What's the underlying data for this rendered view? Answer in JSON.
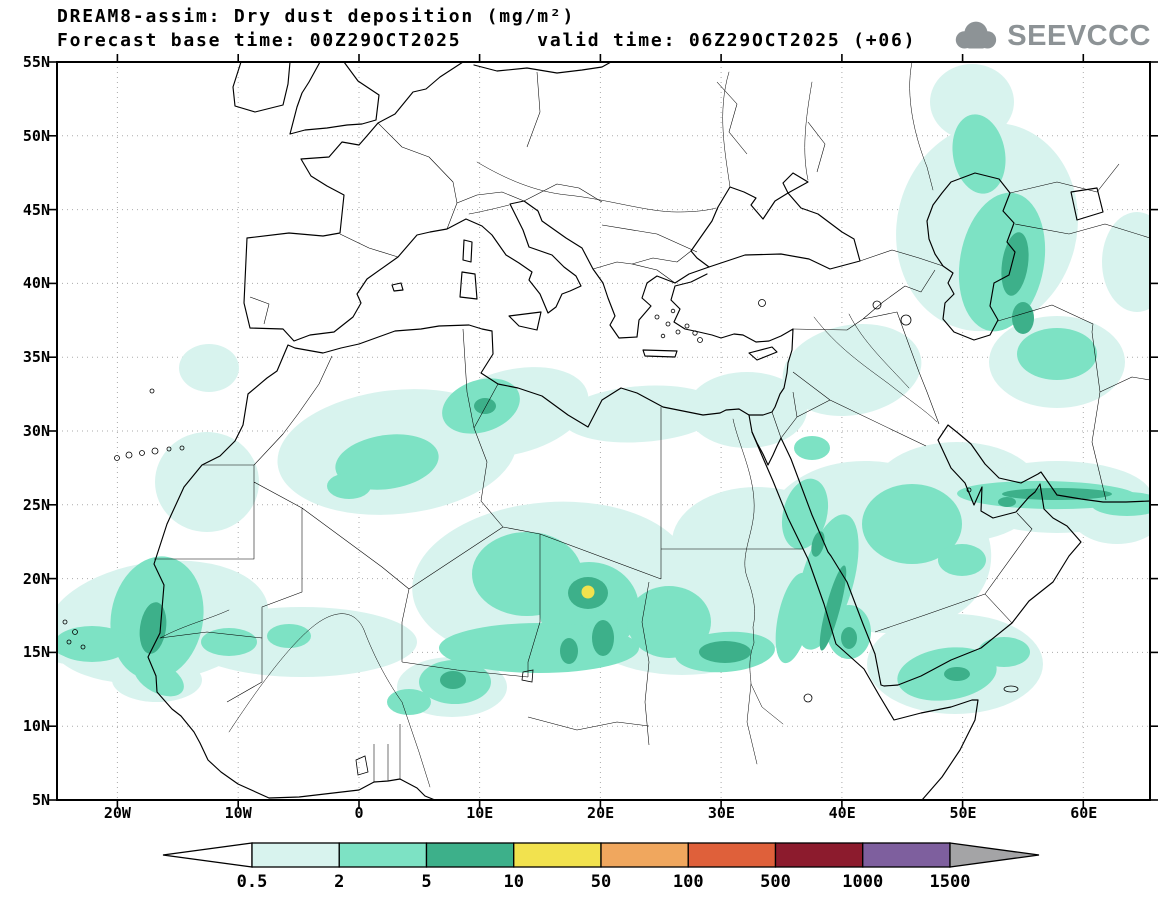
{
  "header": {
    "title_line1": "DREAM8-assim: Dry dust deposition (mg/m²)",
    "title_line2": "Forecast base time: 00Z29OCT2025      valid time: 06Z29OCT2025 (+06)",
    "logo_text": "SEEVCCC"
  },
  "map": {
    "lat_labels": [
      "55N",
      "50N",
      "45N",
      "40N",
      "35N",
      "30N",
      "25N",
      "20N",
      "15N",
      "10N",
      "5N"
    ],
    "lon_labels": [
      "20W",
      "10W",
      "0",
      "10E",
      "20E",
      "30E",
      "40E",
      "50E",
      "60E"
    ]
  },
  "legend": {
    "tick_labels": [
      "0.5",
      "2",
      "5",
      "10",
      "50",
      "100",
      "500",
      "1000",
      "1500"
    ],
    "segment_colors": [
      "#d8f3ee",
      "#7de2c4",
      "#3db08a",
      "#f2e24e",
      "#f0a75e",
      "#df603a",
      "#8c1b2d",
      "#7e5f9e"
    ],
    "arrow_left_color": "#ffffff",
    "arrow_right_color": "#a4a4a6"
  },
  "chart_data": {
    "type": "heatmap",
    "subtype": "filled-contour-geographic-map",
    "title": "DREAM8-assim: Dry dust deposition (mg/m²)",
    "variable": "Dry dust deposition",
    "units": "mg/m²",
    "forecast_base_time": "00Z29OCT2025",
    "valid_time": "06Z29OCT2025",
    "forecast_hour": "+06",
    "levels": [
      0.5,
      2,
      5,
      10,
      50,
      100,
      500,
      1000,
      1500
    ],
    "level_colors": [
      "#ffffff",
      "#d8f3ee",
      "#7de2c4",
      "#3db08a",
      "#f2e24e",
      "#f0a75e",
      "#df603a",
      "#8c1b2d",
      "#7e5f9e",
      "#a4a4a6"
    ],
    "lat_range": [
      "5N",
      "55N"
    ],
    "lon_range": [
      "20W",
      "60E"
    ],
    "grid": "dotted, every 5 deg lat / 10 deg lon",
    "regions_depicted": [
      {
        "area": "Tropical Atlantic / Senegal-Mauritania coast",
        "max_band": "5-10"
      },
      {
        "area": "Central Sahara (Algeria)",
        "max_band": "2-5"
      },
      {
        "area": "Tunisia / NW Libya coast",
        "max_band": "5-10"
      },
      {
        "area": "Chad (~19E,19N)",
        "max_band": "10-50"
      },
      {
        "area": "Sahel belt (Chad-Sudan)",
        "max_band": "5-10"
      },
      {
        "area": "Red Sea coast of Arabia",
        "max_band": "5-10"
      },
      {
        "area": "Persian Gulf / Strait of Hormuz coast",
        "max_band": "5-10"
      },
      {
        "area": "Caspian Sea region",
        "max_band": "5-10"
      },
      {
        "area": "Horn of Africa",
        "max_band": "5-10"
      }
    ]
  }
}
